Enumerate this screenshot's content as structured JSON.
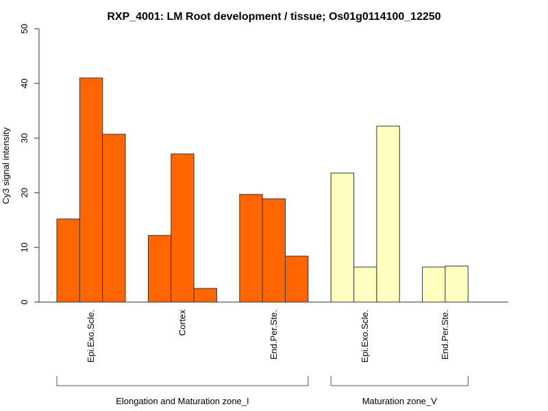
{
  "chart_data": {
    "type": "bar",
    "title": "RXP_4001: LM Root development / tissue; Os01g0114100_12250",
    "xlabel": "",
    "ylabel": "Cy3 signal intensity",
    "ylim": [
      0,
      50
    ],
    "yticks": [
      0,
      10,
      20,
      30,
      40,
      50
    ],
    "grid": false,
    "legend": "none",
    "groups": [
      {
        "zone": "Elongation and Maturation zone_I",
        "color": "#FF6600",
        "tissues": [
          {
            "label": "Epi.Exo.Scle.",
            "values": [
              15.2,
              41.0,
              30.7
            ]
          },
          {
            "label": "Cortex",
            "values": [
              12.2,
              27.1,
              2.5
            ]
          },
          {
            "label": "End.Per.Ste.",
            "values": [
              19.7,
              18.9,
              8.4
            ]
          }
        ]
      },
      {
        "zone": "Maturation zone_V",
        "color": "#FFFFC0",
        "tissues": [
          {
            "label": "Epi.Exo.Scle.",
            "values": [
              23.6,
              6.4,
              32.2
            ]
          },
          {
            "label": "End.Per.Ste.",
            "values": [
              6.4,
              6.6
            ]
          }
        ]
      }
    ]
  }
}
